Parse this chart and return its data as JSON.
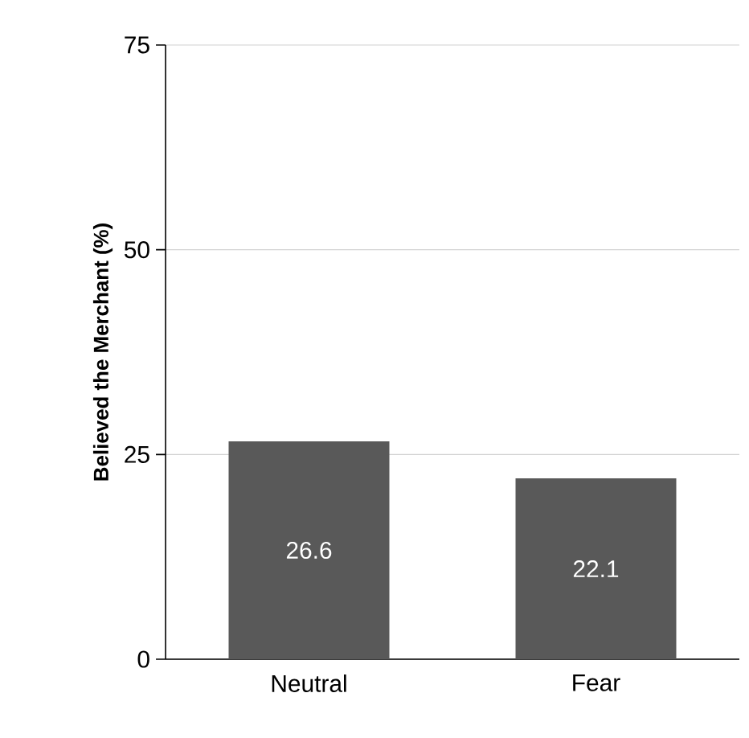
{
  "chart_data": {
    "type": "bar",
    "ylabel": "Believed the Merchant  (%)",
    "categories": [
      "Neutral",
      "Fear"
    ],
    "values": [
      26.6,
      22.1
    ],
    "color": "#595959",
    "ylim": [
      0,
      75
    ],
    "yticks": [
      0,
      25,
      50,
      75
    ],
    "grid": "y",
    "data_labels": true
  }
}
